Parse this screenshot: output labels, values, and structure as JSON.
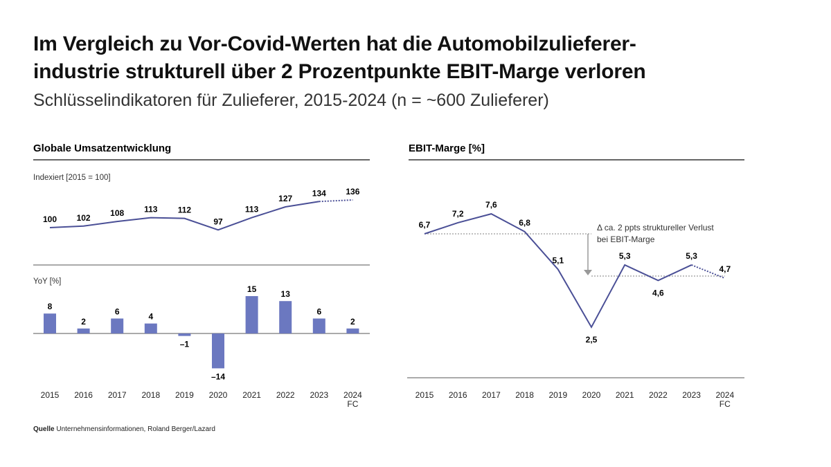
{
  "header": {
    "title_line1": "Im Vergleich zu Vor-Covid-Werten hat die Automobilzulieferer-",
    "title_line2": "industrie strukturell über 2 Prozentpunkte EBIT-Marge verloren",
    "subtitle": "Schlüsselindikatoren für Zulieferer, 2015-2024 (n = ~600 Zulieferer)"
  },
  "source": {
    "label": "Quelle",
    "text": "Unternehmensinformationen, Roland Berger/Lazard"
  },
  "colors": {
    "series": "#4a4f96",
    "bar": "#6b78c0",
    "axis": "#555555",
    "reference": "#999999"
  },
  "chart_data": [
    {
      "type": "line",
      "panel_title": "Globale Umsatzentwicklung",
      "ylabel": "Indexiert [2015 = 100]",
      "categories": [
        "2015",
        "2016",
        "2017",
        "2018",
        "2019",
        "2020",
        "2021",
        "2022",
        "2023",
        "2024"
      ],
      "category_sublabels": [
        "",
        "",
        "",
        "",
        "",
        "",
        "",
        "",
        "",
        "FC"
      ],
      "values": [
        100,
        102,
        108,
        113,
        112,
        97,
        113,
        127,
        134,
        136
      ],
      "labels": [
        "100",
        "102",
        "108",
        "113",
        "112",
        "97",
        "113",
        "127",
        "134",
        "136"
      ],
      "forecast_from_index": 8
    },
    {
      "type": "bar",
      "ylabel": "YoY [%]",
      "categories": [
        "2015",
        "2016",
        "2017",
        "2018",
        "2019",
        "2020",
        "2021",
        "2022",
        "2023",
        "2024"
      ],
      "category_sublabels": [
        "",
        "",
        "",
        "",
        "",
        "",
        "",
        "",
        "",
        "FC"
      ],
      "values": [
        8,
        2,
        6,
        4,
        -1,
        -14,
        15,
        13,
        6,
        2
      ],
      "labels": [
        "8",
        "2",
        "6",
        "4",
        "-1",
        "-14",
        "15",
        "13",
        "6",
        "2"
      ]
    },
    {
      "type": "line",
      "panel_title": "EBIT-Marge [%]",
      "categories": [
        "2015",
        "2016",
        "2017",
        "2018",
        "2019",
        "2020",
        "2021",
        "2022",
        "2023",
        "2024"
      ],
      "category_sublabels": [
        "",
        "",
        "",
        "",
        "",
        "",
        "",
        "",
        "",
        "FC"
      ],
      "values": [
        6.7,
        7.2,
        7.6,
        6.8,
        5.1,
        2.5,
        5.3,
        4.6,
        5.3,
        4.7
      ],
      "labels": [
        "6,7",
        "7,2",
        "7,6",
        "6,8",
        "5,1",
        "2,5",
        "5,3",
        "4,6",
        "5,3",
        "4,7"
      ],
      "forecast_from_index": 8,
      "reference_lines": [
        6.7,
        4.8
      ],
      "annotation_line1": "Δ ca. 2 ppts struktureller Verlust",
      "annotation_line2": "bei EBIT-Marge"
    }
  ]
}
